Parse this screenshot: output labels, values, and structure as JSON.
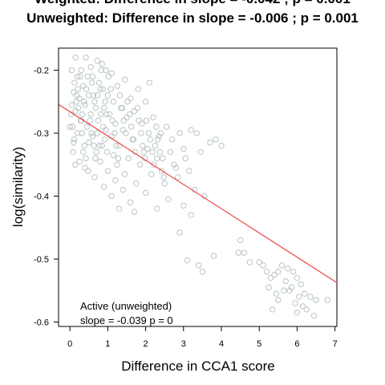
{
  "chart_data": {
    "type": "scatter",
    "title_lines": [
      "Weighted: Difference in slope = -0.042 ; p = 0.001",
      "Unweighted: Difference in slope = -0.006 ; p = 0.001"
    ],
    "xlabel": "Difference in CCA1 score",
    "ylabel": "log(similarity)",
    "xlim": [
      -0.3,
      7.05
    ],
    "ylim": [
      -0.607,
      -0.165
    ],
    "xticks": [
      0,
      1,
      2,
      3,
      4,
      5,
      6,
      7
    ],
    "yticks": [
      -0.2,
      -0.3,
      -0.4,
      -0.5,
      -0.6
    ],
    "xtick_labels": [
      "0",
      "1",
      "2",
      "3",
      "4",
      "5",
      "6",
      "7"
    ],
    "ytick_labels": [
      "-0.2",
      "-0.3",
      "-0.4",
      "-0.5",
      "-0.6"
    ],
    "grid": false,
    "annotation": {
      "line1": "Active (unweighted)",
      "line2": "slope =  -0.039  p =  0"
    },
    "regression": {
      "intercept": -0.266,
      "slope": -0.0385,
      "color": "#ee3b3b"
    },
    "point_color": "#b9c4c4",
    "series": [
      {
        "values": [
          [
            0.15,
            -0.18
          ],
          [
            0.42,
            -0.18
          ],
          [
            0.72,
            -0.185
          ],
          [
            0.85,
            -0.19
          ],
          [
            0.55,
            -0.195
          ],
          [
            0.3,
            -0.2
          ],
          [
            0.95,
            -0.2
          ],
          [
            1.1,
            -0.205
          ],
          [
            0.6,
            -0.21
          ],
          [
            0.2,
            -0.21
          ],
          [
            1.45,
            -0.215
          ],
          [
            2.1,
            -0.22
          ],
          [
            1.25,
            -0.225
          ],
          [
            0.35,
            -0.225
          ],
          [
            0.8,
            -0.23
          ],
          [
            1.8,
            -0.23
          ],
          [
            0.1,
            -0.235
          ],
          [
            0.5,
            -0.24
          ],
          [
            1.0,
            -0.24
          ],
          [
            1.6,
            -0.245
          ],
          [
            0.25,
            -0.245
          ],
          [
            0.65,
            -0.25
          ],
          [
            1.15,
            -0.25
          ],
          [
            2.0,
            -0.25
          ],
          [
            0.05,
            -0.255
          ],
          [
            0.4,
            -0.255
          ],
          [
            0.9,
            -0.26
          ],
          [
            1.35,
            -0.26
          ],
          [
            1.7,
            -0.265
          ],
          [
            0.15,
            -0.265
          ],
          [
            0.55,
            -0.27
          ],
          [
            1.05,
            -0.27
          ],
          [
            1.5,
            -0.275
          ],
          [
            2.2,
            -0.275
          ],
          [
            0.3,
            -0.28
          ],
          [
            0.75,
            -0.28
          ],
          [
            1.2,
            -0.285
          ],
          [
            1.9,
            -0.285
          ],
          [
            0.0,
            -0.29
          ],
          [
            0.45,
            -0.29
          ],
          [
            0.95,
            -0.295
          ],
          [
            1.4,
            -0.295
          ],
          [
            2.4,
            -0.3
          ],
          [
            0.2,
            -0.3
          ],
          [
            0.6,
            -0.305
          ],
          [
            1.1,
            -0.305
          ],
          [
            1.65,
            -0.31
          ],
          [
            2.7,
            -0.31
          ],
          [
            0.1,
            -0.315
          ],
          [
            0.5,
            -0.315
          ],
          [
            0.85,
            -0.32
          ],
          [
            1.3,
            -0.32
          ],
          [
            2.05,
            -0.325
          ],
          [
            3.0,
            -0.325
          ],
          [
            0.35,
            -0.33
          ],
          [
            0.7,
            -0.33
          ],
          [
            1.15,
            -0.335
          ],
          [
            1.55,
            -0.34
          ],
          [
            2.3,
            -0.34
          ],
          [
            0.25,
            -0.345
          ],
          [
            0.8,
            -0.345
          ],
          [
            1.25,
            -0.35
          ],
          [
            1.85,
            -0.35
          ],
          [
            0.4,
            -0.355
          ],
          [
            1.0,
            -0.36
          ],
          [
            1.45,
            -0.365
          ],
          [
            2.15,
            -0.365
          ],
          [
            0.65,
            -0.37
          ],
          [
            1.2,
            -0.375
          ],
          [
            1.75,
            -0.38
          ],
          [
            2.5,
            -0.38
          ],
          [
            0.9,
            -0.385
          ],
          [
            1.4,
            -0.39
          ],
          [
            2.0,
            -0.395
          ],
          [
            1.1,
            -0.4
          ],
          [
            2.6,
            -0.405
          ],
          [
            1.6,
            -0.41
          ],
          [
            3.0,
            -0.415
          ],
          [
            1.3,
            -0.42
          ],
          [
            2.3,
            -0.42
          ],
          [
            1.7,
            -0.425
          ],
          [
            3.2,
            -0.43
          ],
          [
            2.9,
            -0.458
          ],
          [
            3.1,
            -0.502
          ],
          [
            3.4,
            -0.51
          ],
          [
            3.8,
            -0.495
          ],
          [
            4.5,
            -0.47
          ],
          [
            4.45,
            -0.49
          ],
          [
            4.6,
            -0.49
          ],
          [
            4.75,
            -0.505
          ],
          [
            3.5,
            -0.52
          ],
          [
            5.0,
            -0.505
          ],
          [
            5.1,
            -0.51
          ],
          [
            5.2,
            -0.52
          ],
          [
            5.3,
            -0.53
          ],
          [
            5.4,
            -0.525
          ],
          [
            5.5,
            -0.52
          ],
          [
            5.6,
            -0.51
          ],
          [
            5.75,
            -0.515
          ],
          [
            5.9,
            -0.52
          ],
          [
            6.0,
            -0.53
          ],
          [
            6.1,
            -0.54
          ],
          [
            5.25,
            -0.545
          ],
          [
            5.45,
            -0.555
          ],
          [
            5.65,
            -0.55
          ],
          [
            5.85,
            -0.545
          ],
          [
            6.2,
            -0.555
          ],
          [
            6.35,
            -0.56
          ],
          [
            5.5,
            -0.565
          ],
          [
            5.95,
            -0.57
          ],
          [
            6.15,
            -0.575
          ],
          [
            6.5,
            -0.565
          ],
          [
            6.8,
            -0.565
          ],
          [
            5.35,
            -0.58
          ],
          [
            6.0,
            -0.585
          ],
          [
            6.25,
            -0.58
          ],
          [
            6.45,
            -0.59
          ],
          [
            5.8,
            -0.55
          ],
          [
            6.05,
            -0.56
          ],
          [
            5.7,
            -0.535
          ],
          [
            2.45,
            -0.34
          ],
          [
            2.75,
            -0.35
          ],
          [
            3.15,
            -0.36
          ],
          [
            3.3,
            -0.39
          ],
          [
            2.85,
            -0.37
          ],
          [
            3.55,
            -0.4
          ],
          [
            3.85,
            -0.31
          ],
          [
            3.7,
            -0.315
          ],
          [
            4.0,
            -0.32
          ],
          [
            3.45,
            -0.33
          ],
          [
            2.55,
            -0.29
          ],
          [
            2.35,
            -0.305
          ],
          [
            2.9,
            -0.3
          ],
          [
            3.2,
            -0.295
          ],
          [
            3.35,
            -0.3
          ],
          [
            1.95,
            -0.33
          ],
          [
            2.25,
            -0.32
          ],
          [
            2.65,
            -0.33
          ],
          [
            3.05,
            -0.34
          ],
          [
            2.8,
            -0.355
          ],
          [
            0.05,
            -0.2
          ],
          [
            0.12,
            -0.22
          ],
          [
            0.18,
            -0.24
          ],
          [
            0.22,
            -0.26
          ],
          [
            0.28,
            -0.28
          ],
          [
            0.32,
            -0.3
          ],
          [
            0.38,
            -0.32
          ],
          [
            0.42,
            -0.34
          ],
          [
            0.48,
            -0.36
          ],
          [
            0.08,
            -0.33
          ],
          [
            0.14,
            -0.35
          ],
          [
            0.58,
            -0.22
          ],
          [
            0.62,
            -0.24
          ],
          [
            0.68,
            -0.26
          ],
          [
            0.72,
            -0.3
          ],
          [
            0.78,
            -0.32
          ],
          [
            0.82,
            -0.27
          ],
          [
            0.88,
            -0.29
          ],
          [
            0.92,
            -0.31
          ],
          [
            0.98,
            -0.33
          ],
          [
            1.02,
            -0.21
          ],
          [
            1.08,
            -0.23
          ],
          [
            1.12,
            -0.28
          ],
          [
            1.18,
            -0.3
          ],
          [
            1.22,
            -0.32
          ],
          [
            1.28,
            -0.34
          ],
          [
            1.32,
            -0.24
          ],
          [
            1.38,
            -0.26
          ],
          [
            1.42,
            -0.28
          ],
          [
            1.48,
            -0.3
          ],
          [
            1.52,
            -0.25
          ],
          [
            1.58,
            -0.27
          ],
          [
            1.62,
            -0.29
          ],
          [
            1.68,
            -0.31
          ],
          [
            1.72,
            -0.33
          ],
          [
            1.78,
            -0.26
          ],
          [
            1.82,
            -0.28
          ],
          [
            1.88,
            -0.3
          ],
          [
            1.92,
            -0.32
          ],
          [
            1.98,
            -0.34
          ],
          [
            2.02,
            -0.28
          ],
          [
            2.08,
            -0.3
          ],
          [
            2.12,
            -0.31
          ],
          [
            2.18,
            -0.33
          ],
          [
            2.22,
            -0.35
          ],
          [
            2.28,
            -0.29
          ],
          [
            2.32,
            -0.31
          ],
          [
            2.38,
            -0.33
          ],
          [
            2.42,
            -0.36
          ],
          [
            2.48,
            -0.37
          ],
          [
            0.03,
            -0.27
          ],
          [
            0.07,
            -0.29
          ],
          [
            0.11,
            -0.31
          ],
          [
            0.17,
            -0.25
          ],
          [
            0.21,
            -0.23
          ],
          [
            0.27,
            -0.21
          ],
          [
            0.33,
            -0.27
          ],
          [
            0.37,
            -0.25
          ],
          [
            0.43,
            -0.23
          ],
          [
            0.47,
            -0.21
          ],
          [
            0.53,
            -0.28
          ],
          [
            0.57,
            -0.3
          ],
          [
            0.63,
            -0.32
          ],
          [
            0.67,
            -0.34
          ],
          [
            0.73,
            -0.24
          ],
          [
            0.77,
            -0.22
          ],
          [
            0.83,
            -0.2
          ],
          [
            0.87,
            -0.23
          ],
          [
            0.93,
            -0.25
          ],
          [
            0.97,
            -0.27
          ]
        ]
      }
    ]
  }
}
